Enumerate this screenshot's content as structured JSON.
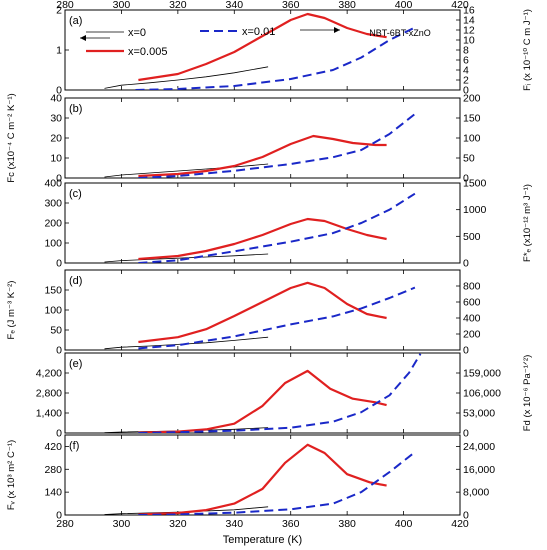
{
  "figure": {
    "xlabel": "Temperature (K)",
    "xlim": [
      280,
      420
    ],
    "xticks": [
      280,
      300,
      320,
      340,
      360,
      380,
      400,
      420
    ],
    "annotation": "NBT-6BT-xZnO",
    "legend": [
      {
        "label": "x=0",
        "color": "#000000",
        "style": "solid-thin"
      },
      {
        "label": "x=0.005",
        "color": "#e02020",
        "style": "solid-thick"
      },
      {
        "label": "x=0.01",
        "color": "#1a28c8",
        "style": "dashed"
      }
    ]
  },
  "chart_data": [
    {
      "panel": "(a)",
      "type": "line",
      "ylabel_left": "",
      "ylim_left": [
        0,
        2
      ],
      "yticks_left": [
        "0",
        "1",
        "2"
      ],
      "ylabel_right": "F_i (x 10^-10 C m J^-1)",
      "ylim_right": [
        0,
        16
      ],
      "yticks_right": [
        "0",
        "2",
        "4",
        "6",
        "8",
        "10",
        "12",
        "14",
        "16"
      ],
      "series": [
        {
          "name": "x=0",
          "axis": "left",
          "x": [
            294,
            300,
            310,
            320,
            330,
            340,
            352
          ],
          "y": [
            0.04,
            0.12,
            0.18,
            0.25,
            0.33,
            0.43,
            0.58
          ]
        },
        {
          "name": "x=0.005",
          "axis": "left",
          "x": [
            306,
            320,
            330,
            340,
            350,
            360,
            366,
            372,
            380,
            387,
            394
          ],
          "y": [
            0.25,
            0.4,
            0.65,
            0.95,
            1.35,
            1.75,
            1.9,
            1.8,
            1.55,
            1.4,
            1.32
          ]
        },
        {
          "name": "x=0.01",
          "axis": "right",
          "x": [
            305,
            320,
            340,
            360,
            375,
            385,
            395,
            404
          ],
          "y": [
            0.0,
            0.2,
            0.8,
            2.2,
            4.0,
            6.5,
            10.0,
            12.5
          ]
        }
      ]
    },
    {
      "panel": "(b)",
      "type": "line",
      "ylabel_left": "F_c (x10^-4 C m^-2 K^-1)",
      "ylim_left": [
        0,
        40
      ],
      "yticks_left": [
        "0",
        "10",
        "20",
        "30",
        "40"
      ],
      "ylabel_right": "",
      "ylim_right": [
        0,
        200
      ],
      "yticks_right": [
        "0",
        "50",
        "100",
        "150",
        "200"
      ],
      "series": [
        {
          "name": "x=0",
          "axis": "left",
          "x": [
            294,
            300,
            310,
            320,
            330,
            340,
            352
          ],
          "y": [
            0.5,
            1.5,
            2.5,
            3.5,
            4.5,
            5.5,
            7.0
          ]
        },
        {
          "name": "x=0.005",
          "axis": "left",
          "x": [
            306,
            320,
            330,
            340,
            350,
            360,
            368,
            375,
            382,
            390,
            394
          ],
          "y": [
            1.0,
            2.0,
            3.5,
            6.0,
            10.5,
            17.0,
            21.0,
            19.5,
            17.5,
            16.5,
            16.5
          ]
        },
        {
          "name": "x=0.01",
          "axis": "right",
          "x": [
            306,
            320,
            340,
            360,
            375,
            385,
            395,
            404
          ],
          "y": [
            0,
            5,
            18,
            35,
            52,
            70,
            110,
            160
          ]
        }
      ]
    },
    {
      "panel": "(c)",
      "type": "line",
      "ylabel_left": "",
      "ylim_left": [
        0,
        400
      ],
      "yticks_left": [
        "0",
        "100",
        "200",
        "300",
        "400"
      ],
      "ylabel_right": "F*_e (x10^-12 m^3 J^-1)",
      "ylim_right": [
        0,
        1500
      ],
      "yticks_right": [
        "0",
        "500",
        "1000",
        "1500"
      ],
      "series": [
        {
          "name": "x=0",
          "axis": "left",
          "x": [
            294,
            300,
            310,
            320,
            330,
            340,
            352
          ],
          "y": [
            5,
            12,
            18,
            24,
            30,
            36,
            45
          ]
        },
        {
          "name": "x=0.005",
          "axis": "left",
          "x": [
            306,
            320,
            330,
            340,
            350,
            360,
            366,
            372,
            380,
            387,
            394
          ],
          "y": [
            20,
            35,
            60,
            95,
            140,
            195,
            220,
            210,
            170,
            140,
            120
          ]
        },
        {
          "name": "x=0.01",
          "axis": "right",
          "x": [
            306,
            320,
            340,
            360,
            375,
            385,
            395,
            404
          ],
          "y": [
            0,
            50,
            220,
            400,
            560,
            750,
            1000,
            1300
          ]
        }
      ]
    },
    {
      "panel": "(d)",
      "type": "line",
      "ylabel_left": "F_e (J m^-3 K^-2)",
      "ylim_left": [
        0,
        200
      ],
      "yticks_left": [
        "0",
        "50",
        "100",
        "150"
      ],
      "ylabel_right": "",
      "ylim_right": [
        0,
        1000
      ],
      "yticks_right": [
        "0",
        "200",
        "400",
        "600",
        "800"
      ],
      "series": [
        {
          "name": "x=0",
          "axis": "left",
          "x": [
            294,
            300,
            310,
            320,
            330,
            340,
            352
          ],
          "y": [
            3,
            7,
            10,
            14,
            18,
            24,
            32
          ]
        },
        {
          "name": "x=0.005",
          "axis": "left",
          "x": [
            306,
            320,
            330,
            340,
            350,
            360,
            366,
            372,
            380,
            387,
            394
          ],
          "y": [
            20,
            32,
            52,
            85,
            120,
            155,
            168,
            155,
            115,
            90,
            80
          ]
        },
        {
          "name": "x=0.01",
          "axis": "right",
          "x": [
            306,
            320,
            340,
            360,
            375,
            385,
            395,
            404
          ],
          "y": [
            20,
            60,
            170,
            320,
            420,
            520,
            650,
            780
          ]
        }
      ]
    },
    {
      "panel": "(e)",
      "type": "line",
      "ylabel_left": "",
      "ylim_left": [
        0,
        5600
      ],
      "yticks_left": [
        "0",
        "1,400",
        "2,800",
        "4,200"
      ],
      "ylabel_right": "F_d (x 10^-6 Pa^-1/2)",
      "ylim_right": [
        0,
        212000
      ],
      "yticks_right": [
        "0",
        "53,000",
        "106,000",
        "159,000"
      ],
      "series": [
        {
          "name": "x=0",
          "axis": "left",
          "x": [
            294,
            300,
            320,
            340,
            352
          ],
          "y": [
            30,
            70,
            140,
            260,
            380
          ]
        },
        {
          "name": "x=0.005",
          "axis": "left",
          "x": [
            306,
            320,
            330,
            340,
            350,
            358,
            366,
            374,
            382,
            390,
            394
          ],
          "y": [
            30,
            100,
            250,
            650,
            1900,
            3500,
            4350,
            3100,
            2400,
            2150,
            1950
          ]
        },
        {
          "name": "x=0.01",
          "axis": "right",
          "x": [
            306,
            320,
            340,
            360,
            375,
            385,
            395,
            402,
            406
          ],
          "y": [
            0,
            2000,
            6000,
            14000,
            30000,
            55000,
            100000,
            160000,
            210000
          ]
        }
      ]
    },
    {
      "panel": "(f)",
      "type": "line",
      "ylabel_left": "F_v (x 10^3 m^2 C^-1)",
      "ylim_left": [
        0,
        490
      ],
      "yticks_left": [
        "0",
        "140",
        "280",
        "420"
      ],
      "ylabel_right": "",
      "ylim_right": [
        0,
        28000
      ],
      "yticks_right": [
        "0",
        "8,000",
        "16,000",
        "24,000"
      ],
      "series": [
        {
          "name": "x=0",
          "axis": "left",
          "x": [
            294,
            300,
            320,
            340,
            352
          ],
          "y": [
            3,
            8,
            18,
            32,
            50
          ]
        },
        {
          "name": "x=0.005",
          "axis": "left",
          "x": [
            306,
            320,
            330,
            340,
            350,
            358,
            366,
            372,
            380,
            388,
            394
          ],
          "y": [
            3,
            12,
            30,
            70,
            160,
            320,
            430,
            380,
            250,
            200,
            180
          ]
        },
        {
          "name": "x=0.01",
          "axis": "right",
          "x": [
            306,
            320,
            340,
            360,
            375,
            385,
            395,
            404
          ],
          "y": [
            0,
            200,
            800,
            2000,
            4000,
            8000,
            15000,
            22000
          ]
        }
      ]
    }
  ]
}
